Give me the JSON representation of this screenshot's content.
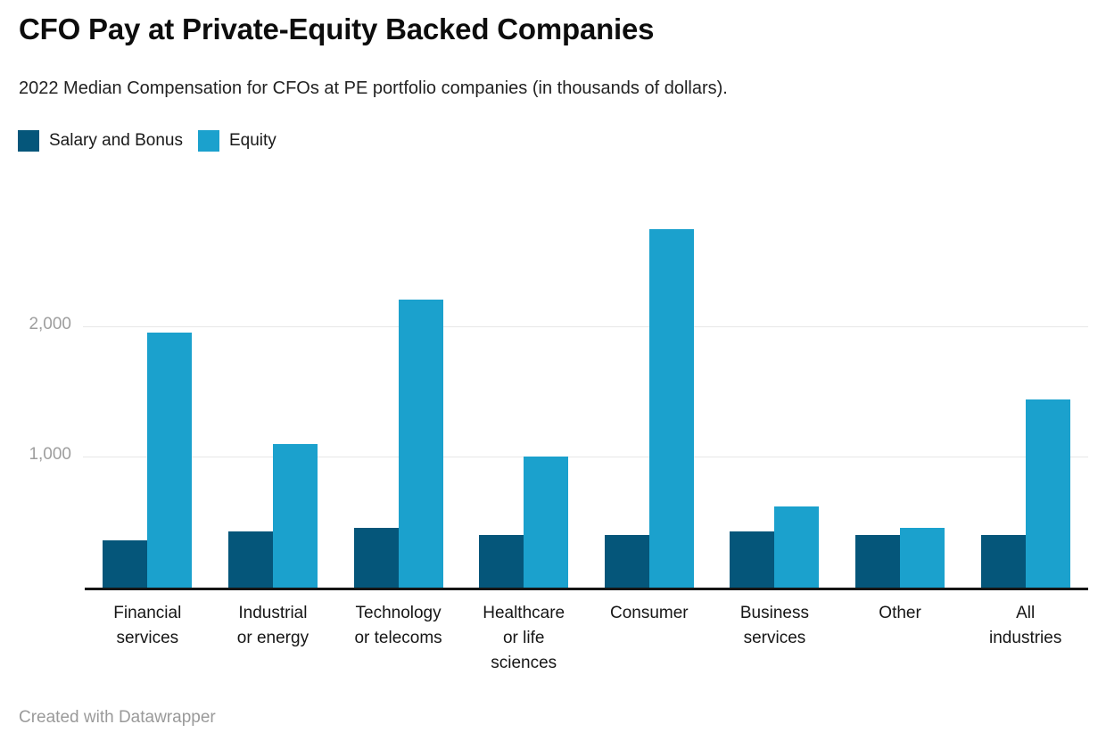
{
  "header": {
    "title": "CFO Pay at Private-Equity Backed Companies",
    "subtitle": "2022 Median Compensation for CFOs at PE portfolio companies (in thousands of dollars)."
  },
  "legend": {
    "items": [
      {
        "label": "Salary and Bonus",
        "color": "#05567a"
      },
      {
        "label": "Equity",
        "color": "#1ba1cd"
      }
    ]
  },
  "chart_data": {
    "type": "bar",
    "title": "CFO Pay at Private-Equity Backed Companies",
    "subtitle": "2022 Median Compensation for CFOs at PE portfolio companies (in thousands of dollars).",
    "categories": [
      "Financial services",
      "Industrial or energy",
      "Technology or telecoms",
      "Healthcare or life sciences",
      "Consumer",
      "Business services",
      "Other",
      "All industries"
    ],
    "category_label_lines": [
      [
        "Financial",
        "services"
      ],
      [
        "Industrial",
        "or energy"
      ],
      [
        "Technology",
        "or telecoms"
      ],
      [
        "Healthcare",
        "or life",
        "sciences"
      ],
      [
        "Consumer"
      ],
      [
        "Business",
        "services"
      ],
      [
        "Other"
      ],
      [
        "All",
        "industries"
      ]
    ],
    "series": [
      {
        "name": "Salary and Bonus",
        "color": "#05567a",
        "values": [
          360,
          430,
          460,
          400,
          400,
          430,
          400,
          400
        ]
      },
      {
        "name": "Equity",
        "color": "#1ba1cd",
        "values": [
          1950,
          1100,
          2200,
          1000,
          2740,
          620,
          455,
          1440
        ]
      }
    ],
    "xlabel": "",
    "ylabel": "",
    "ylim": [
      0,
      3000
    ],
    "yticks": [
      1000,
      2000
    ],
    "ytick_labels": [
      "1,000",
      "2,000"
    ],
    "grid": "horizontal",
    "legend_position": "top-left"
  },
  "footer": {
    "credit": "Created with Datawrapper"
  }
}
